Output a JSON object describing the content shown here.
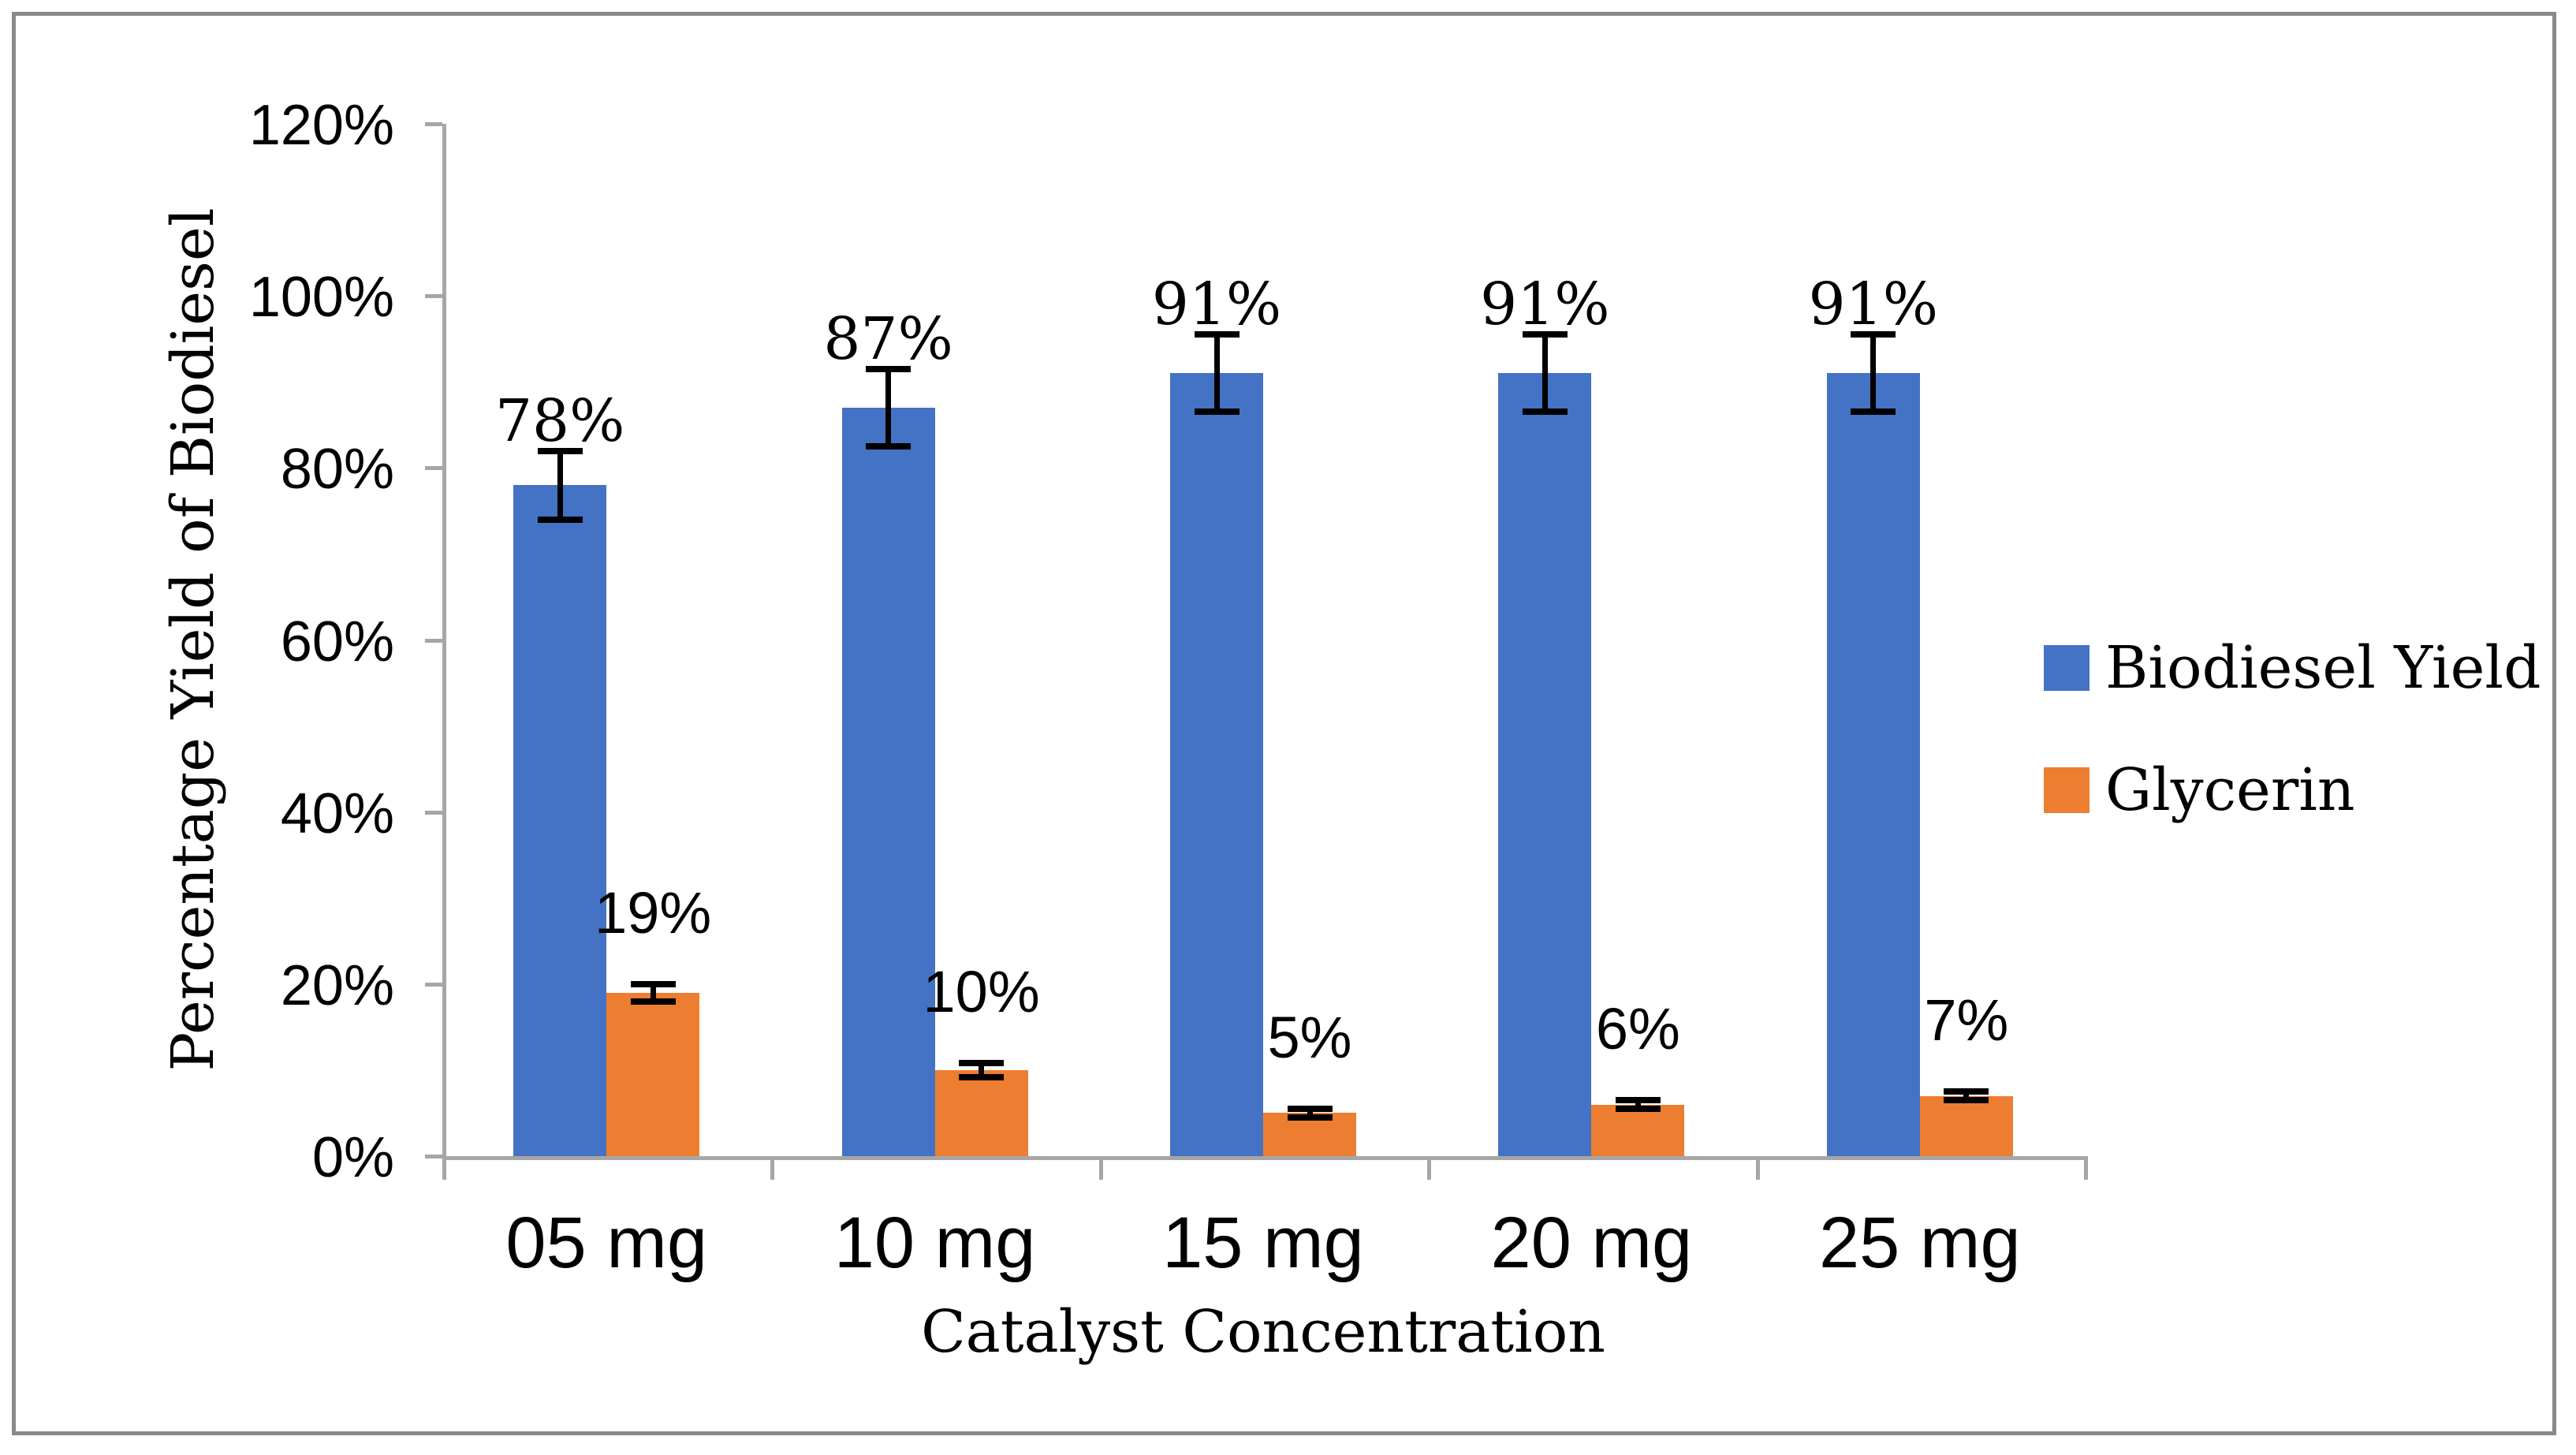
{
  "chart_data": {
    "type": "bar",
    "title": "",
    "categories": [
      "05 mg",
      "10 mg",
      "15 mg",
      "20 mg",
      "25 mg"
    ],
    "series": [
      {
        "name": "Biodiesel Yield",
        "color": "#4472C4",
        "values": [
          78,
          87,
          91,
          91,
          91
        ],
        "value_labels": [
          "78%",
          "87%",
          "91%",
          "91%",
          "91%"
        ],
        "errors": [
          4,
          4.5,
          4.5,
          4.5,
          4.5
        ]
      },
      {
        "name": "Glycerin",
        "color": "#ED7D31",
        "values": [
          19,
          10,
          5,
          6,
          7
        ],
        "value_labels": [
          "19%",
          "10%",
          "5%",
          "6%",
          "7%"
        ],
        "errors": [
          1,
          0.8,
          0.5,
          0.5,
          0.5
        ]
      }
    ],
    "xlabel": "Catalyst Concentration",
    "ylabel": "Percentage Yield of Biodiesel",
    "ylim": [
      0,
      120
    ],
    "ytick_step": 20,
    "ytick_labels": [
      "0%",
      "20%",
      "40%",
      "60%",
      "80%",
      "100%",
      "120%"
    ],
    "legend_position": "right",
    "grid": false,
    "error_bars": true
  },
  "colors": {
    "axis": "#A6A6A6",
    "frame_border": "#898989",
    "error_bar": "#000000",
    "text": "#000000"
  }
}
